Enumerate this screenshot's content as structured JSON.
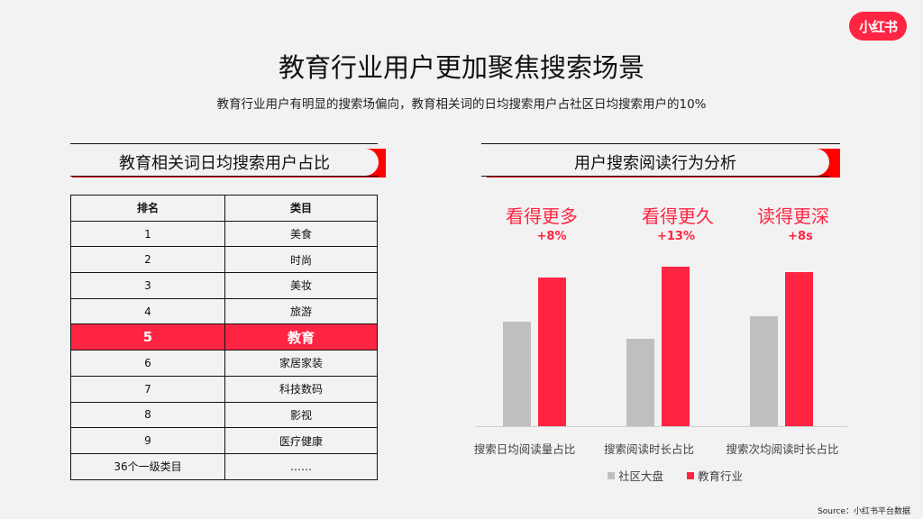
{
  "brand": {
    "logo_text": "小红书",
    "accent": "#ff2442"
  },
  "header": {
    "title": "教育行业用户更加聚焦搜索场景",
    "subtitle": "教育行业用户有明显的搜索场偏向，教育相关词的日均搜索用户占社区日均搜索用户的10%"
  },
  "left_section": {
    "heading": "教育相关词日均搜索用户占比",
    "table": {
      "columns": [
        "排名",
        "类目"
      ],
      "rows": [
        {
          "rank": "1",
          "category": "美食"
        },
        {
          "rank": "2",
          "category": "时尚"
        },
        {
          "rank": "3",
          "category": "美妆"
        },
        {
          "rank": "4",
          "category": "旅游"
        },
        {
          "rank": "5",
          "category": "教育",
          "highlight": true
        },
        {
          "rank": "6",
          "category": "家居家装"
        },
        {
          "rank": "7",
          "category": "科技数码"
        },
        {
          "rank": "8",
          "category": "影视"
        },
        {
          "rank": "9",
          "category": "医疗健康"
        },
        {
          "rank": "36个一级类目",
          "category": "……"
        }
      ]
    }
  },
  "right_section": {
    "heading": "用户搜索阅读行为分析",
    "metrics": [
      {
        "label": "看得更多",
        "delta": "+8%"
      },
      {
        "label": "看得更久",
        "delta": "+13%"
      },
      {
        "label": "读得更深",
        "delta": "+8s"
      }
    ]
  },
  "chart_data": {
    "type": "bar",
    "title": "用户搜索阅读行为分析",
    "categories": [
      "搜索日均阅读量占比",
      "搜索阅读时长占比",
      "搜索次均阅读时长占比"
    ],
    "series": [
      {
        "name": "社区大盘",
        "color": "#bfbfbf",
        "values": [
          116,
          97,
          122
        ]
      },
      {
        "name": "教育行业",
        "color": "#ff2442",
        "values": [
          165,
          177,
          171
        ]
      }
    ],
    "annotations": [
      "+8%",
      "+13%",
      "+8s"
    ],
    "xlabel": "",
    "ylabel": "",
    "grid": false,
    "legend_position": "bottom",
    "note": "values are relative bar heights in pixels; no y-axis shown"
  },
  "footer": {
    "source": "Source：小红书平台数据"
  }
}
